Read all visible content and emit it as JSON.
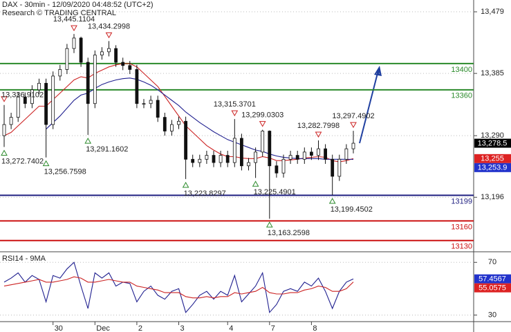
{
  "chart_data": [
    {
      "type": "candlestick",
      "title": "DAX - 30min - 12/09/2020 04:48:52 (UTC+2)",
      "subtitle": "Research © TRADING CENTRAL",
      "categories": [
        null,
        null,
        null,
        null,
        null,
        null,
        null,
        "30",
        null,
        null,
        null,
        null,
        null,
        "Dec",
        null,
        null,
        null,
        null,
        null,
        "2",
        null,
        null,
        null,
        null,
        null,
        "3",
        null,
        null,
        null,
        null,
        null,
        null,
        "4",
        null,
        null,
        null,
        null,
        null,
        "7",
        null,
        null,
        null,
        null,
        null,
        "8",
        null,
        null,
        null,
        null,
        null,
        null
      ],
      "open": [
        13290,
        13307,
        13318,
        13349,
        13339,
        13360,
        13370,
        13307,
        13381,
        13391,
        13423,
        13439,
        13402,
        13339,
        13413,
        13418,
        13423,
        13402,
        13397,
        13391,
        13339,
        13339,
        13344,
        13318,
        13297,
        13307,
        13312,
        13254,
        13249,
        13254,
        13260,
        13249,
        13260,
        13249,
        13286,
        13244,
        13249,
        13265,
        13297,
        13244,
        13233,
        13254,
        13260,
        13254,
        13265,
        13260,
        13270,
        13254,
        13228,
        13254,
        13270
      ],
      "high": [
        13336.9102,
        13325,
        13356,
        13356,
        13367,
        13377,
        13377,
        13388,
        13398,
        13430,
        13445.1104,
        13441,
        13409,
        13420,
        13425,
        13434.2998,
        13428,
        13409,
        13404,
        13398,
        13346,
        13351,
        13351,
        13325,
        13314,
        13319,
        13319,
        13261,
        13261,
        13267,
        13267,
        13267,
        13267,
        13315.3701,
        13293,
        13256,
        13272,
        13299.0303,
        13298,
        13251,
        13261,
        13267,
        13267,
        13272,
        13272,
        13282.7998,
        13277,
        13261,
        13261,
        13277,
        13297.4902
      ],
      "low": [
        13272.7402,
        13300,
        13311,
        13332,
        13332,
        13353,
        13256.7598,
        13300,
        13374,
        13384,
        13416,
        13395,
        13291.1602,
        13332,
        13406,
        13411,
        13395,
        13390,
        13384,
        13332,
        13332,
        13332,
        13311,
        13290,
        13290,
        13300,
        13223.8297,
        13242,
        13242,
        13247,
        13242,
        13242,
        13242,
        13242,
        13237,
        13237,
        13225.4901,
        13258,
        13163.2598,
        13226,
        13226,
        13247,
        13247,
        13247,
        13253,
        13253,
        13247,
        13199.4502,
        13221,
        13247,
        13263
      ],
      "close": [
        13307,
        13318,
        13349,
        13339,
        13360,
        13370,
        13307,
        13381,
        13391,
        13423,
        13439,
        13402,
        13339,
        13413,
        13418,
        13423,
        13402,
        13397,
        13391,
        13339,
        13339,
        13344,
        13318,
        13297,
        13307,
        13312,
        13254,
        13249,
        13254,
        13260,
        13249,
        13260,
        13249,
        13286,
        13244,
        13249,
        13265,
        13297,
        13244,
        13233,
        13254,
        13260,
        13254,
        13265,
        13260,
        13270,
        13254,
        13228,
        13254,
        13270,
        13278.5
      ],
      "high_labels": [
        "13,336.9102",
        null,
        null,
        null,
        null,
        null,
        null,
        null,
        null,
        null,
        "13,445.1104",
        null,
        null,
        null,
        null,
        "13,434.2998",
        null,
        null,
        null,
        null,
        null,
        null,
        null,
        null,
        null,
        null,
        null,
        null,
        null,
        null,
        null,
        null,
        null,
        "13,315.3701",
        null,
        null,
        null,
        "13,299.0303",
        null,
        null,
        null,
        null,
        null,
        null,
        null,
        "13,282.7998",
        null,
        null,
        null,
        null,
        "13,297.4902"
      ],
      "low_labels": [
        "13,272.7402",
        null,
        null,
        null,
        null,
        null,
        "13,256.7598",
        null,
        null,
        null,
        null,
        null,
        "13,291.1602",
        null,
        null,
        null,
        null,
        null,
        null,
        null,
        null,
        null,
        null,
        null,
        null,
        null,
        "13,223.8297",
        null,
        null,
        null,
        null,
        null,
        null,
        null,
        null,
        null,
        "13,225.4901",
        null,
        "13,163.2598",
        null,
        null,
        null,
        null,
        null,
        null,
        null,
        null,
        "13,199.4502",
        null,
        null,
        null
      ],
      "series": [
        {
          "color": "#cc2222",
          "values": [
            13290,
            13295,
            13305,
            13315,
            13325,
            13335,
            13335,
            13345,
            13355,
            13365,
            13375,
            13380,
            13378,
            13385,
            13390,
            13395,
            13398,
            13400,
            13400,
            13395,
            13385,
            13375,
            13365,
            13350,
            13335,
            13320,
            13305,
            13295,
            13285,
            13275,
            13268,
            13262,
            13258,
            13258,
            13256,
            13255,
            13255,
            13258,
            13256,
            13252,
            13252,
            13253,
            13254,
            13256,
            13257,
            13258,
            13257,
            13252,
            13250,
            13252,
            13255
          ]
        },
        {
          "color": "#1f1f8f",
          "values": [
            null,
            null,
            null,
            null,
            null,
            null,
            13300,
            13310,
            13320,
            13332,
            13344,
            13352,
            13355,
            13362,
            13368,
            13372,
            13375,
            13377,
            13378,
            13376,
            13372,
            13367,
            13360,
            13352,
            13344,
            13336,
            13326,
            13318,
            13310,
            13303,
            13296,
            13290,
            13284,
            13280,
            13276,
            13272,
            13268,
            13266,
            13262,
            13259,
            13257,
            13256,
            13255,
            13255,
            13255,
            13255,
            13254,
            13254,
            13254,
            13254,
            13253.9
          ]
        }
      ],
      "levels": [
        {
          "value": 13400,
          "color": "#2a8a2a"
        },
        {
          "value": 13360,
          "color": "#2a8a2a"
        },
        {
          "value": 13199,
          "color": "#1f1f80"
        },
        {
          "value": 13160,
          "color": "#cc1111"
        },
        {
          "value": 13130,
          "color": "#cc1111"
        }
      ],
      "price_tags": [
        {
          "value": 13278.5,
          "label": "13,278.5",
          "color": "#000000"
        },
        {
          "value": 13255,
          "label": "13,255",
          "color": "#dd2222"
        },
        {
          "value": 13253.9,
          "label": "13,253.9",
          "color": "#2233cc"
        }
      ],
      "ylim": [
        13115,
        13497
      ],
      "yticks": [
        {
          "value": 13479,
          "label": "13,479"
        },
        {
          "value": 13385,
          "label": "13,385"
        },
        {
          "value": 13290,
          "label": "13,290"
        },
        {
          "value": 13196,
          "label": "13,196"
        }
      ],
      "grid": true
    },
    {
      "type": "line",
      "title": "RSI14 - 9MA",
      "series": [
        {
          "color": "#1f1f8f",
          "values": [
            55,
            58,
            62,
            55,
            60,
            57,
            40,
            60,
            58,
            65,
            70,
            52,
            35,
            62,
            58,
            62,
            52,
            55,
            54,
            40,
            48,
            52,
            45,
            42,
            48,
            50,
            32,
            38,
            45,
            48,
            42,
            48,
            45,
            60,
            40,
            46,
            52,
            62,
            32,
            38,
            48,
            50,
            48,
            55,
            52,
            58,
            48,
            35,
            48,
            55,
            57.4567
          ]
        },
        {
          "color": "#cc2222",
          "values": [
            52,
            53,
            54,
            55,
            56,
            57,
            55,
            55,
            56,
            57,
            59,
            58,
            55,
            55,
            56,
            57,
            56,
            55,
            55,
            52,
            51,
            50,
            49,
            47,
            47,
            47,
            44,
            43,
            43,
            44,
            43,
            44,
            44,
            47,
            46,
            47,
            48,
            51,
            47,
            46,
            46,
            47,
            47,
            49,
            50,
            52,
            51,
            48,
            48,
            50,
            55.0575
          ]
        }
      ],
      "price_tags": [
        {
          "value": 57.4567,
          "color": "#2233cc"
        },
        {
          "value": 55.0575,
          "color": "#dd2222"
        }
      ],
      "ylim": [
        25,
        77.5
      ],
      "yticks": [
        70,
        30
      ],
      "grid": true
    }
  ]
}
